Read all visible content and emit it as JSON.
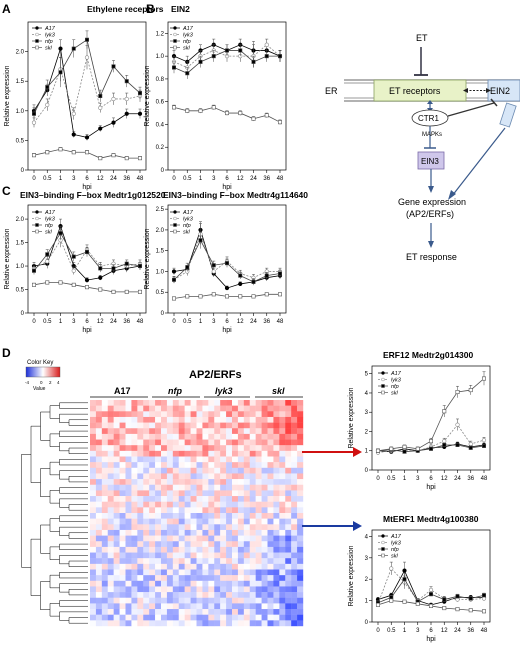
{
  "panel_labels": [
    "A",
    "B",
    "C",
    "D"
  ],
  "legend_labels": [
    "A17",
    "lyk3",
    "nfp",
    "skl"
  ],
  "common": {
    "x": [
      "0",
      "0.5",
      "1",
      "3",
      "6",
      "12",
      "24",
      "36",
      "48"
    ],
    "xlabel": "hpi",
    "ylabel": "Relative expression"
  },
  "chart_data": [
    {
      "id": "A",
      "type": "line",
      "title": "Ethylene receptors",
      "ylim": [
        0,
        2.5
      ],
      "yticks": [
        0,
        0.5,
        1.0,
        1.5,
        2.0
      ],
      "series": [
        {
          "name": "A17",
          "values": [
            1.0,
            1.35,
            2.05,
            0.6,
            0.55,
            0.7,
            0.8,
            0.95,
            0.95
          ],
          "err": [
            0.1,
            0.1,
            0.15,
            0.05,
            0.05,
            0.05,
            0.08,
            0.08,
            0.08
          ]
        },
        {
          "name": "lyk3",
          "values": [
            0.8,
            1.1,
            1.7,
            0.95,
            1.9,
            1.05,
            1.2,
            1.2,
            1.25
          ],
          "err": [
            0.08,
            0.1,
            0.2,
            0.1,
            0.2,
            0.08,
            0.1,
            0.1,
            0.1
          ]
        },
        {
          "name": "nfp",
          "values": [
            0.95,
            1.4,
            1.65,
            2.05,
            2.2,
            1.25,
            1.75,
            1.5,
            1.3
          ],
          "err": [
            0.1,
            0.12,
            0.25,
            0.15,
            0.15,
            0.1,
            0.1,
            0.1,
            0.1
          ]
        },
        {
          "name": "skl",
          "values": [
            0.25,
            0.3,
            0.35,
            0.3,
            0.3,
            0.2,
            0.25,
            0.2,
            0.2
          ],
          "err": [
            0.03,
            0.03,
            0.03,
            0.03,
            0.03,
            0.03,
            0.03,
            0.03,
            0.03
          ]
        }
      ]
    },
    {
      "id": "B",
      "type": "line",
      "title": "EIN2",
      "ylim": [
        0,
        1.3
      ],
      "yticks": [
        0,
        0.2,
        0.4,
        0.6,
        0.8,
        1.0,
        1.2
      ],
      "series": [
        {
          "name": "A17",
          "values": [
            1.0,
            0.95,
            1.05,
            1.1,
            1.05,
            1.1,
            1.05,
            1.05,
            1.0
          ],
          "err": [
            0.05,
            0.05,
            0.05,
            0.05,
            0.05,
            0.05,
            0.08,
            0.05,
            0.05
          ]
        },
        {
          "name": "lyk3",
          "values": [
            0.95,
            0.9,
            1.0,
            1.05,
            1.0,
            1.0,
            1.0,
            1.1,
            1.0
          ],
          "err": [
            0.05,
            0.05,
            0.05,
            0.05,
            0.05,
            0.05,
            0.1,
            0.05,
            0.05
          ]
        },
        {
          "name": "nfp",
          "values": [
            0.9,
            0.85,
            0.95,
            1.0,
            1.05,
            1.05,
            0.95,
            1.0,
            1.0
          ],
          "err": [
            0.05,
            0.05,
            0.05,
            0.05,
            0.05,
            0.05,
            0.05,
            0.05,
            0.05
          ]
        },
        {
          "name": "skl",
          "values": [
            0.55,
            0.52,
            0.52,
            0.55,
            0.5,
            0.5,
            0.45,
            0.48,
            0.42
          ],
          "err": [
            0.02,
            0.02,
            0.02,
            0.02,
            0.02,
            0.02,
            0.02,
            0.02,
            0.02
          ]
        }
      ]
    },
    {
      "id": "C1",
      "type": "line",
      "title": "EIN3–binding F–box Medtr1g012520",
      "ylim": [
        0,
        2.3
      ],
      "yticks": [
        0,
        0.5,
        1.0,
        1.5,
        2.0
      ],
      "series": [
        {
          "name": "A17",
          "values": [
            1.0,
            1.05,
            1.85,
            1.0,
            0.7,
            0.75,
            0.9,
            0.95,
            1.0
          ],
          "err": [
            0.08,
            0.1,
            0.15,
            0.08,
            0.05,
            0.05,
            0.08,
            0.08,
            0.08
          ]
        },
        {
          "name": "lyk3",
          "values": [
            0.95,
            1.1,
            1.55,
            0.9,
            1.35,
            1.0,
            1.05,
            1.0,
            1.05
          ],
          "err": [
            0.08,
            0.1,
            0.15,
            0.08,
            0.1,
            0.08,
            0.08,
            0.08,
            0.08
          ]
        },
        {
          "name": "nfp",
          "values": [
            0.9,
            1.25,
            1.7,
            1.2,
            1.3,
            0.95,
            0.95,
            1.05,
            1.0
          ],
          "err": [
            0.08,
            0.1,
            0.15,
            0.1,
            0.1,
            0.08,
            0.08,
            0.08,
            0.08
          ]
        },
        {
          "name": "skl",
          "values": [
            0.6,
            0.65,
            0.65,
            0.6,
            0.55,
            0.5,
            0.45,
            0.45,
            0.45
          ],
          "err": [
            0.03,
            0.03,
            0.03,
            0.03,
            0.03,
            0.03,
            0.03,
            0.03,
            0.03
          ]
        }
      ]
    },
    {
      "id": "C2",
      "type": "line",
      "title": "EIN3–binding F–box Medtr4g114640",
      "ylim": [
        0,
        2.6
      ],
      "yticks": [
        0,
        0.5,
        1.0,
        1.5,
        2.0,
        2.5
      ],
      "series": [
        {
          "name": "A17",
          "values": [
            1.0,
            1.05,
            2.0,
            0.95,
            0.6,
            0.7,
            0.75,
            0.85,
            0.9
          ],
          "err": [
            0.08,
            0.1,
            0.2,
            0.08,
            0.05,
            0.05,
            0.05,
            0.08,
            0.08
          ]
        },
        {
          "name": "lyk3",
          "values": [
            0.8,
            1.0,
            1.9,
            1.0,
            1.25,
            0.95,
            0.85,
            1.0,
            1.0
          ],
          "err": [
            0.08,
            0.1,
            0.25,
            0.08,
            0.1,
            0.08,
            0.08,
            0.08,
            0.08
          ]
        },
        {
          "name": "nfp",
          "values": [
            0.8,
            1.1,
            1.75,
            1.15,
            1.2,
            0.9,
            0.75,
            0.9,
            0.95
          ],
          "err": [
            0.08,
            0.1,
            0.2,
            0.1,
            0.1,
            0.08,
            0.08,
            0.08,
            0.08
          ]
        },
        {
          "name": "skl",
          "values": [
            0.35,
            0.4,
            0.4,
            0.45,
            0.4,
            0.4,
            0.4,
            0.45,
            0.45
          ],
          "err": [
            0.03,
            0.03,
            0.03,
            0.03,
            0.03,
            0.03,
            0.03,
            0.03,
            0.03
          ]
        }
      ]
    },
    {
      "id": "E1",
      "type": "line",
      "title": "ERF12 Medtr2g014300",
      "ylim": [
        0,
        5.4
      ],
      "yticks": [
        0,
        1,
        2,
        3,
        4,
        5
      ],
      "series": [
        {
          "name": "A17",
          "values": [
            1.0,
            0.95,
            1.1,
            1.0,
            1.15,
            1.2,
            1.35,
            1.2,
            1.3
          ],
          "err": [
            0.08,
            0.08,
            0.1,
            0.08,
            0.1,
            0.1,
            0.1,
            0.1,
            0.1
          ]
        },
        {
          "name": "lyk3",
          "values": [
            0.9,
            1.0,
            1.0,
            1.0,
            1.2,
            1.5,
            2.35,
            1.35,
            1.55
          ],
          "err": [
            0.08,
            0.1,
            0.1,
            0.08,
            0.15,
            0.15,
            0.3,
            0.15,
            0.15
          ]
        },
        {
          "name": "nfp",
          "values": [
            1.0,
            1.05,
            0.95,
            1.0,
            1.1,
            1.3,
            1.3,
            1.15,
            1.25
          ],
          "err": [
            0.08,
            0.08,
            0.08,
            0.08,
            0.1,
            0.1,
            0.1,
            0.1,
            0.1
          ]
        },
        {
          "name": "skl",
          "values": [
            1.0,
            1.1,
            1.2,
            1.1,
            1.5,
            3.05,
            4.05,
            4.15,
            4.75
          ],
          "err": [
            0.1,
            0.1,
            0.1,
            0.1,
            0.15,
            0.3,
            0.3,
            0.25,
            0.35
          ]
        }
      ]
    },
    {
      "id": "E2",
      "type": "line",
      "title": "MtERF1 Medtr4g100380",
      "ylim": [
        0,
        4.3
      ],
      "yticks": [
        0,
        1,
        2,
        3,
        4
      ],
      "series": [
        {
          "name": "A17",
          "values": [
            1.05,
            1.25,
            2.4,
            1.0,
            0.8,
            0.95,
            1.15,
            1.15,
            1.15
          ],
          "err": [
            0.1,
            0.1,
            0.4,
            0.1,
            0.08,
            0.08,
            0.1,
            0.1,
            0.1
          ]
        },
        {
          "name": "lyk3",
          "values": [
            0.85,
            2.5,
            1.85,
            1.0,
            1.5,
            1.1,
            1.05,
            1.05,
            1.1
          ],
          "err": [
            0.1,
            0.3,
            0.3,
            0.1,
            0.15,
            0.1,
            0.1,
            0.1,
            0.1
          ]
        },
        {
          "name": "nfp",
          "values": [
            0.9,
            1.15,
            2.0,
            0.95,
            1.3,
            1.05,
            1.2,
            1.1,
            1.25
          ],
          "err": [
            0.1,
            0.1,
            0.3,
            0.1,
            0.1,
            0.1,
            0.1,
            0.1,
            0.1
          ]
        },
        {
          "name": "skl",
          "values": [
            0.8,
            1.0,
            0.95,
            0.85,
            0.75,
            0.65,
            0.6,
            0.55,
            0.5
          ],
          "err": [
            0.05,
            0.05,
            0.05,
            0.05,
            0.05,
            0.05,
            0.05,
            0.05,
            0.05
          ]
        }
      ]
    }
  ],
  "diagram": {
    "er": "ER",
    "et": "ET",
    "et_receptors": "ET receptors",
    "ein2": "EIN2",
    "ctr1": "CTR1",
    "mapks": "MAPKs",
    "ein3": "EIN3",
    "gene_expression": "Gene expression",
    "ap2_erfs_paren": "(AP2/ERFs)",
    "et_response": "ET response"
  },
  "heatmap": {
    "title": "AP2/ERFs",
    "color_key_title": "Color Key",
    "value_label": "Value",
    "key_ticks": [
      "-4",
      "0",
      "2",
      "4"
    ],
    "groups": [
      "A17",
      "nfp",
      "lyk3",
      "skl"
    ]
  },
  "colors": {
    "A17": "#000000",
    "lyk3": "#888888",
    "nfp": "#000000",
    "skl": "#555555",
    "red_arrow": "#d01010",
    "blue_arrow": "#1a3aa0",
    "er_box": "#e8f2c8",
    "ein2_box": "#d7e6f7",
    "ein3_box": "#cfc7eb"
  }
}
